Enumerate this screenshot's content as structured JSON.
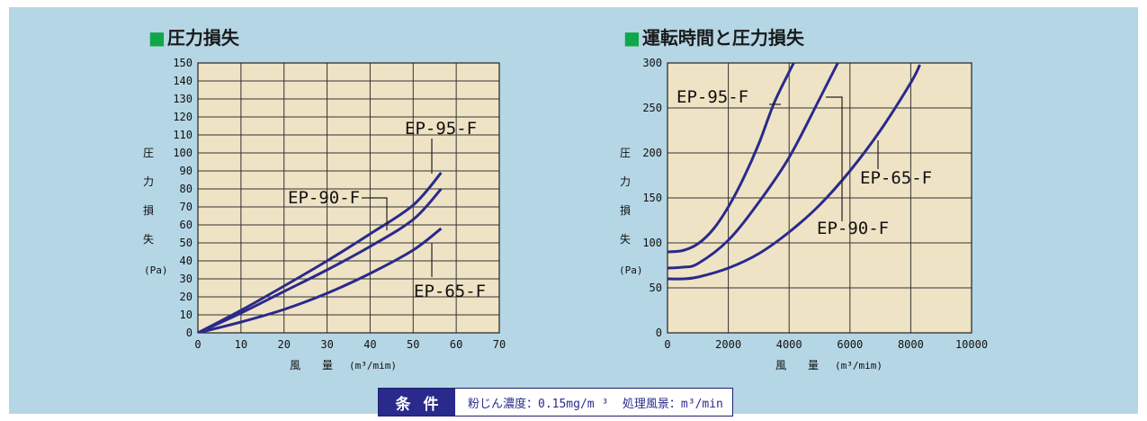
{
  "chart_data": [
    {
      "type": "line",
      "title": "圧力損失",
      "ylabel_chars": [
        "圧",
        "力",
        "損",
        "失"
      ],
      "yunit": "(Pa)",
      "xlabel": "風　　量",
      "xunit": "(m³/mim)",
      "xlim": [
        0,
        70
      ],
      "ylim": [
        0,
        150
      ],
      "xticks": [
        0,
        10,
        20,
        30,
        40,
        50,
        60,
        70
      ],
      "yticks": [
        0,
        10,
        20,
        30,
        40,
        50,
        60,
        70,
        80,
        90,
        100,
        110,
        120,
        130,
        140,
        150
      ],
      "grid": true,
      "series": [
        {
          "name": "EP-95-F",
          "x": [
            0,
            10,
            20,
            30,
            40,
            50,
            56.5
          ],
          "y": [
            0,
            12.5,
            26,
            40,
            55,
            71,
            89
          ]
        },
        {
          "name": "EP-90-F",
          "x": [
            0,
            10,
            20,
            30,
            40,
            50,
            56.5
          ],
          "y": [
            0,
            11,
            23,
            35,
            48,
            63,
            80
          ]
        },
        {
          "name": "EP-65-F",
          "x": [
            0,
            10,
            20,
            30,
            40,
            50,
            56.5
          ],
          "y": [
            0,
            6,
            13,
            22,
            33,
            46,
            58
          ]
        }
      ],
      "annotations": [
        {
          "text": "EP-95-F",
          "series": "EP-95-F"
        },
        {
          "text": "EP-90-F",
          "series": "EP-90-F"
        },
        {
          "text": "EP-65-F",
          "series": "EP-65-F"
        }
      ]
    },
    {
      "type": "line",
      "title": "運転時間と圧力損失",
      "ylabel_chars": [
        "圧",
        "力",
        "損",
        "失"
      ],
      "yunit": "(Pa)",
      "xlabel": "風　　量",
      "xunit": "(m³/mim)",
      "xlim": [
        0,
        10000
      ],
      "ylim": [
        0,
        300
      ],
      "xticks": [
        0,
        2000,
        4000,
        6000,
        8000,
        10000
      ],
      "yticks": [
        0,
        50,
        100,
        150,
        200,
        250,
        300
      ],
      "grid": true,
      "series": [
        {
          "name": "EP-95-F",
          "x": [
            0,
            500,
            1000,
            1500,
            2000,
            2500,
            3000,
            3500,
            4000,
            4150
          ],
          "y": [
            90,
            91.5,
            99,
            115,
            140,
            172,
            210,
            255,
            290,
            300
          ]
        },
        {
          "name": "EP-90-F",
          "x": [
            0,
            500,
            1000,
            2000,
            3000,
            4000,
            5000,
            5600
          ],
          "y": [
            72,
            73,
            77,
            103,
            145,
            195,
            260,
            300
          ]
        },
        {
          "name": "EP-65-F",
          "x": [
            0,
            500,
            1000,
            2000,
            3000,
            4000,
            5000,
            6000,
            7000,
            8000,
            8300
          ],
          "y": [
            60,
            60,
            62,
            72,
            88,
            112,
            142,
            180,
            225,
            278,
            298
          ]
        }
      ],
      "annotations": [
        {
          "text": "EP-95-F",
          "series": "EP-95-F"
        },
        {
          "text": "EP-90-F",
          "series": "EP-90-F"
        },
        {
          "text": "EP-65-F",
          "series": "EP-65-F"
        }
      ]
    }
  ],
  "conditions": {
    "label": "条件",
    "text": "粉じん濃度：0.15mg/m ³  処理風景：m³/min"
  },
  "colors": {
    "background": "#b5d6e5",
    "plot_area": "#efe3c5",
    "curve": "#2a2a8c",
    "title_square": "#10a64a"
  }
}
